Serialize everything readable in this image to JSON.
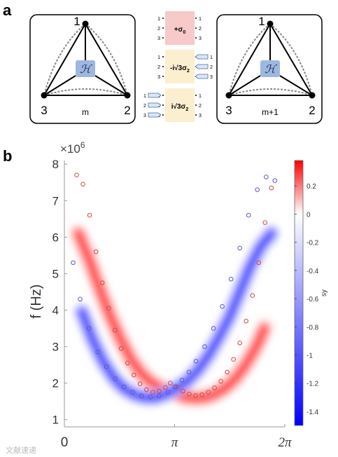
{
  "panel_a": {
    "label": "a",
    "left_cell": {
      "node_top": "1",
      "node_left": "3",
      "node_right": "2",
      "hamiltonian": "ℋ",
      "index": "m"
    },
    "right_cell": {
      "node_top": "1",
      "node_left": "3",
      "node_right": "2",
      "hamiltonian": "ℋ",
      "index": "m+1"
    },
    "couplings": [
      {
        "label": "+σ",
        "sub": "0",
        "color": "#f7c9c9",
        "ports_left": [
          "1",
          "2",
          "3"
        ],
        "ports_right": [
          "1",
          "2",
          "3"
        ]
      },
      {
        "label": "-i√3σ",
        "sub": "2",
        "color": "#fbefcf",
        "ports_left": [
          "1",
          "2",
          "3"
        ],
        "ports_right": [
          "1",
          "2",
          "3"
        ]
      },
      {
        "label": "i√3σ",
        "sub": "2",
        "color": "#fbefcf",
        "ports_left": [
          "1",
          "2",
          "3"
        ],
        "ports_right": [
          "1",
          "2",
          "3"
        ]
      }
    ]
  },
  "panel_b": {
    "label": "b",
    "multiplier": "×10",
    "multiplier_exp": "6",
    "colorbar_label": "sy",
    "watermark": "文献速递"
  },
  "chart_data": {
    "type": "heatmap",
    "ylabel": "f (Hz)",
    "xlabel": "",
    "xlim": [
      0,
      6.2832
    ],
    "ylim": [
      0.8,
      8.1
    ],
    "xticks": [
      "0",
      "π",
      "2π"
    ],
    "yticks": [
      "1",
      "2",
      "3",
      "4",
      "5",
      "6",
      "7",
      "8"
    ],
    "colorbar": {
      "ticks": [
        "0.2",
        "0",
        "-0.2",
        "-0.4",
        "-0.6",
        "-0.8",
        "-1",
        "-1.2",
        "-1.4"
      ],
      "range": [
        -1.5,
        0.38
      ],
      "colors": [
        "#0000ff",
        "#ffffff",
        "#ff0000"
      ]
    },
    "series": [
      {
        "kind": "circles",
        "color": "#d04a4a",
        "x": [
          0.35,
          0.53,
          0.72,
          0.9,
          1.08,
          1.26,
          1.44,
          1.62,
          1.8,
          1.98,
          2.16,
          2.34,
          2.52,
          2.7,
          2.88,
          3.02,
          3.2,
          3.38,
          3.56,
          3.74,
          3.92,
          4.1,
          4.28,
          4.46,
          4.64,
          4.82,
          5.0,
          5.18,
          5.36,
          5.54,
          5.72,
          5.9
        ],
        "y": [
          7.7,
          7.45,
          6.6,
          5.6,
          4.75,
          4.05,
          3.45,
          2.95,
          2.55,
          2.22,
          1.98,
          1.82,
          1.75,
          1.78,
          1.88,
          2.0,
          1.9,
          1.78,
          1.7,
          1.66,
          1.68,
          1.75,
          1.87,
          2.05,
          2.3,
          2.65,
          3.1,
          3.7,
          4.4,
          5.3,
          6.4,
          7.35
        ]
      },
      {
        "kind": "circles",
        "color": "#5a5ac8",
        "x": [
          0.25,
          0.45,
          0.7,
          0.95,
          1.2,
          1.45,
          1.7,
          1.95,
          2.2,
          2.45,
          2.7,
          2.95,
          3.15,
          3.35,
          3.55,
          3.75,
          4.0,
          4.25,
          4.5,
          4.75,
          5.0,
          5.25,
          5.5,
          5.75,
          6.0
        ],
        "y": [
          5.3,
          4.3,
          3.5,
          2.85,
          2.45,
          2.12,
          1.9,
          1.75,
          1.65,
          1.62,
          1.65,
          1.75,
          1.9,
          2.08,
          2.3,
          2.6,
          3.0,
          3.5,
          4.1,
          4.85,
          5.7,
          6.6,
          7.3,
          7.65,
          7.55
        ]
      },
      {
        "kind": "heat",
        "name": "red_branch",
        "value": 0.35,
        "x": [
          0.4,
          0.7,
          1.0,
          1.3,
          1.6,
          1.9,
          2.2,
          2.5,
          2.8,
          3.1,
          3.4,
          3.7,
          4.0,
          4.3,
          4.6,
          4.9,
          5.2,
          5.5,
          5.7
        ],
        "y": [
          6.1,
          5.4,
          4.6,
          3.85,
          3.2,
          2.65,
          2.25,
          2.0,
          1.85,
          1.75,
          1.62,
          1.58,
          1.6,
          1.7,
          1.88,
          2.15,
          2.55,
          3.05,
          3.5
        ]
      },
      {
        "kind": "heat",
        "name": "blue_branch",
        "value": -1.3,
        "x": [
          0.5,
          0.8,
          1.1,
          1.4,
          1.7,
          2.0,
          2.3,
          2.6,
          2.9,
          3.2,
          3.5,
          3.8,
          4.1,
          4.4,
          4.7,
          5.0,
          5.3,
          5.6,
          5.9
        ],
        "y": [
          3.95,
          3.2,
          2.6,
          2.15,
          1.85,
          1.68,
          1.6,
          1.6,
          1.7,
          1.85,
          2.05,
          2.35,
          2.75,
          3.25,
          3.8,
          4.5,
          5.2,
          5.75,
          6.1
        ]
      }
    ]
  }
}
